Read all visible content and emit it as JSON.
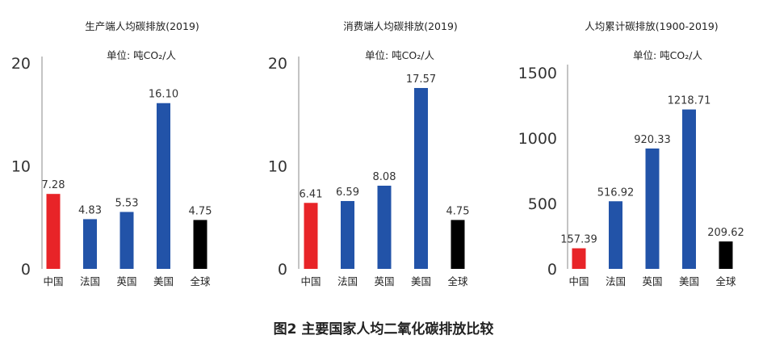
{
  "caption": "图2 主要国家人均二氧化碳排放比较",
  "colors": {
    "china": "#e82428",
    "other": "#2253a8",
    "global": "#000000"
  },
  "chart_data": [
    {
      "type": "bar",
      "title": "生产端人均碳排放(2019)",
      "unit": "单位: 吨CO₂/人",
      "categories": [
        "中国",
        "法国",
        "英国",
        "美国",
        "全球"
      ],
      "values": [
        7.28,
        4.83,
        5.53,
        16.1,
        4.75
      ],
      "value_labels": [
        "7.28",
        "4.83",
        "5.53",
        "16.10",
        "4.75"
      ],
      "bar_colors": [
        "#e82428",
        "#2253a8",
        "#2253a8",
        "#2253a8",
        "#000000"
      ],
      "yticks": [
        "0",
        "10",
        "20"
      ],
      "ytick_values": [
        0,
        10,
        20
      ],
      "ylim": [
        0,
        20
      ]
    },
    {
      "type": "bar",
      "title": "消费端人均碳排放(2019)",
      "unit": "单位: 吨CO₂/人",
      "categories": [
        "中国",
        "法国",
        "英国",
        "美国",
        "全球"
      ],
      "values": [
        6.41,
        6.59,
        8.08,
        17.57,
        4.75
      ],
      "value_labels": [
        "6.41",
        "6.59",
        "8.08",
        "17.57",
        "4.75"
      ],
      "bar_colors": [
        "#e82428",
        "#2253a8",
        "#2253a8",
        "#2253a8",
        "#000000"
      ],
      "yticks": [
        "0",
        "10",
        "20"
      ],
      "ytick_values": [
        0,
        10,
        20
      ],
      "ylim": [
        0,
        20
      ]
    },
    {
      "type": "bar",
      "title": "人均累计碳排放(1900-2019)",
      "unit": "单位: 吨CO₂/人",
      "categories": [
        "中国",
        "法国",
        "英国",
        "美国",
        "全球"
      ],
      "values": [
        157.39,
        516.92,
        920.33,
        1218.71,
        209.62
      ],
      "value_labels": [
        "157.39",
        "516.92",
        "920.33",
        "1218.71",
        "209.62"
      ],
      "bar_colors": [
        "#e82428",
        "#2253a8",
        "#2253a8",
        "#2253a8",
        "#000000"
      ],
      "yticks": [
        "0",
        "500",
        "1000",
        "1500"
      ],
      "ytick_values": [
        0,
        500,
        1000,
        1500
      ],
      "ylim": [
        0,
        1600
      ]
    }
  ]
}
